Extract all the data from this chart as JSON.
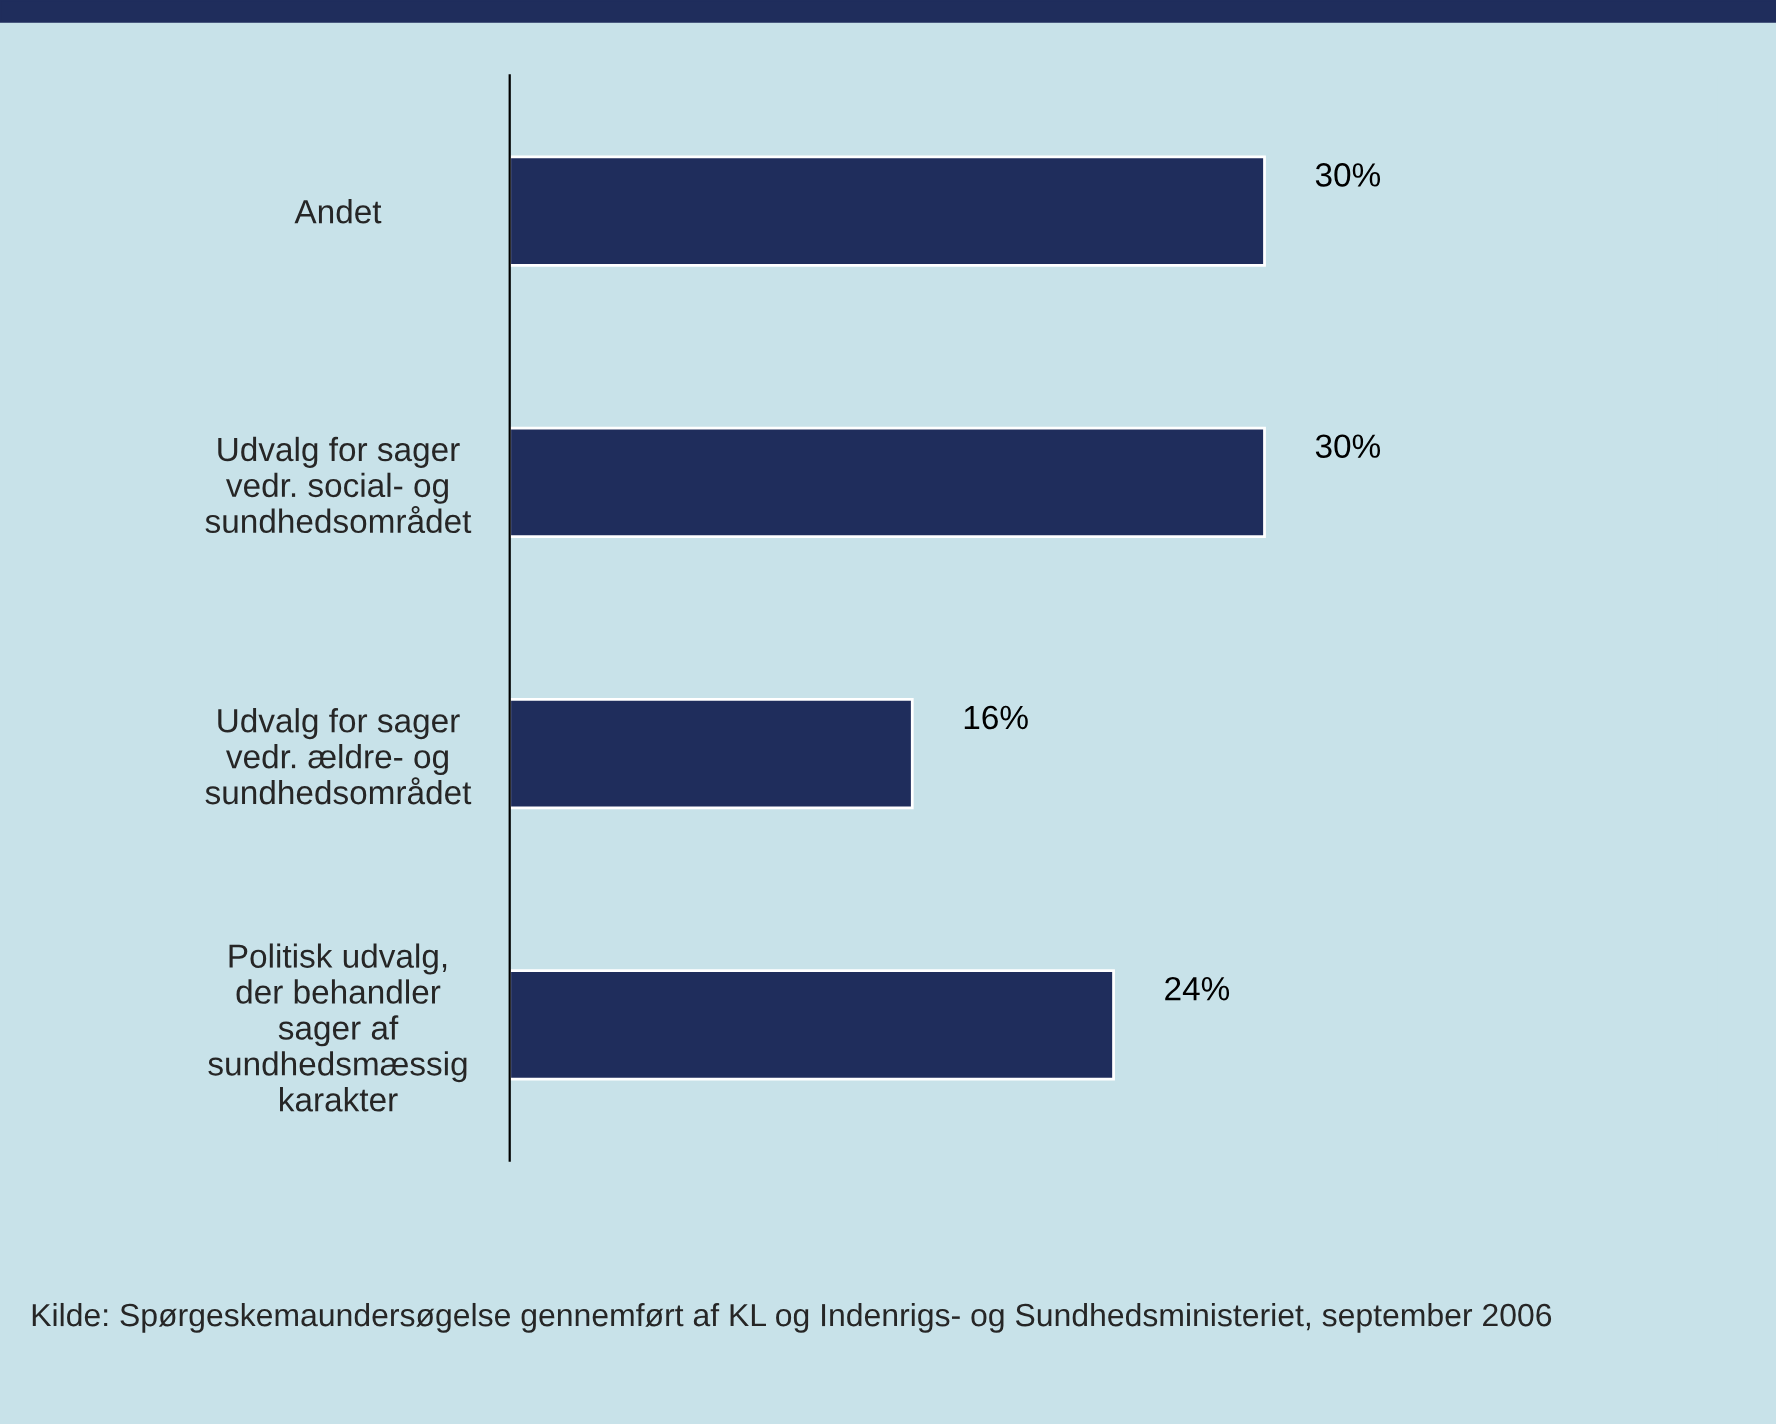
{
  "chart_data": {
    "type": "bar",
    "orientation": "horizontal",
    "categories": [
      "Andet",
      "Udvalg for sager\nvedr. social- og\nsundhedsområdet",
      "Udvalg for sager\nvedr. ældre- og\nsundhedsområdet",
      "Politisk udvalg,\nder behandler\nsager af\nsundhedsmæssig\nkarakter"
    ],
    "values": [
      30,
      30,
      16,
      24
    ],
    "value_labels": [
      "30%",
      "30%",
      "16%",
      "24%"
    ],
    "color": "#1f2d5c",
    "grid": false,
    "legend": false,
    "annotations": [
      "Kilde: Spørgeskemaundersøgelse gennemført af KL og Indenrigs- og Sundhedsministeriet, september 2006"
    ]
  }
}
